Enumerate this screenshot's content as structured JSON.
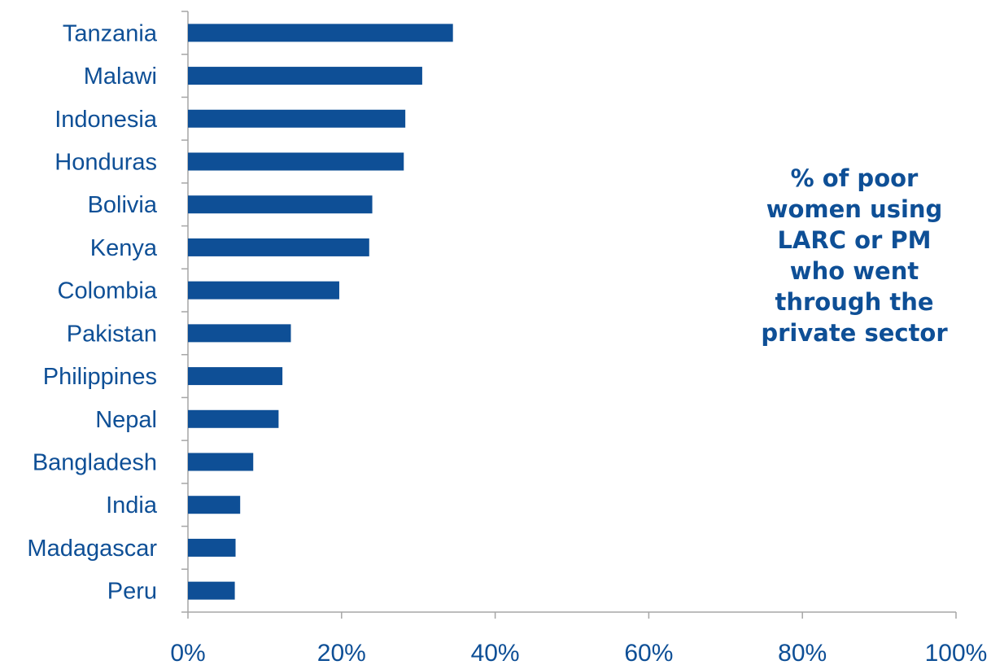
{
  "chart_data": {
    "type": "bar",
    "orientation": "horizontal",
    "categories": [
      "Tanzania",
      "Malawi",
      "Indonesia",
      "Honduras",
      "Bolivia",
      "Kenya",
      "Colombia",
      "Pakistan",
      "Philippines",
      "Nepal",
      "Bangladesh",
      "India",
      "Madagascar",
      "Peru"
    ],
    "series": [
      {
        "values": [
          34.5,
          30.5,
          28.3,
          28.1,
          24.0,
          23.6,
          19.7,
          13.4,
          12.3,
          11.8,
          8.5,
          6.8,
          6.2,
          6.1
        ]
      }
    ],
    "annotation_lines": [
      "% of poor",
      "women using",
      "LARC or PM",
      "who went",
      "through the",
      "private sector"
    ],
    "xlim": [
      0,
      100
    ],
    "x_ticks": [
      "0%",
      "20%",
      "40%",
      "60%",
      "80%",
      "100%"
    ],
    "grid": false,
    "legend": "none",
    "colors": {
      "bar": "#0e4f96",
      "text": "#0e4f96",
      "axis": "#a6a6a6"
    }
  }
}
